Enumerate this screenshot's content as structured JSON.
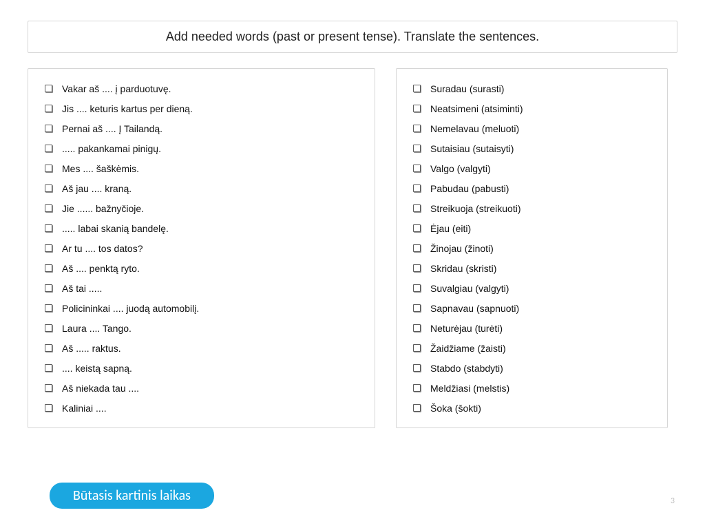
{
  "title": "Add needed words (past or present tense). Translate the sentences.",
  "left_items": [
    "Vakar aš .... į parduotuvę.",
    "Jis ....  keturis kartus per dieną.",
    "Pernai aš .... Į Tailandą.",
    "..... pakankamai pinigų.",
    "Mes .... šaškėmis.",
    "Aš jau ....  kraną.",
    "Jie ...... bažnyčioje.",
    "..... labai skanią bandelę.",
    "Ar tu ....  tos datos?",
    "Aš .... penktą ryto.",
    "Aš tai .....",
    "Policininkai .... juodą automobilį.",
    "Laura .... Tango.",
    "Aš ..... raktus.",
    ".... keistą sapną.",
    "Aš niekada tau ....",
    "Kaliniai ...."
  ],
  "right_items": [
    "Suradau (surasti)",
    "Neatsimeni (atsiminti)",
    "Nemelavau (meluoti)",
    "Sutaisiau (sutaisyti)",
    "Valgo (valgyti)",
    "Pabudau (pabusti)",
    "Streikuoja (streikuoti)",
    "Ėjau (eiti)",
    "Žinojau (žinoti)",
    "Skridau (skristi)",
    "Suvalgiau (valgyti)",
    "Sapnavau (sapnuoti)",
    "Neturėjau (turėti)",
    "Žaidžiame (žaisti)",
    "Stabdo (stabdyti)",
    "Meldžiasi (melstis)",
    "Šoka (šokti)"
  ],
  "badge": "Būtasis kartinis laikas",
  "page_number": "3",
  "colors": {
    "border": "#d6d6d6",
    "text": "#111111",
    "badge_bg": "#1ba7e0",
    "badge_text": "#ffffff",
    "pagenum": "#bfbfbf",
    "bullet_border": "#5a5a5a"
  }
}
